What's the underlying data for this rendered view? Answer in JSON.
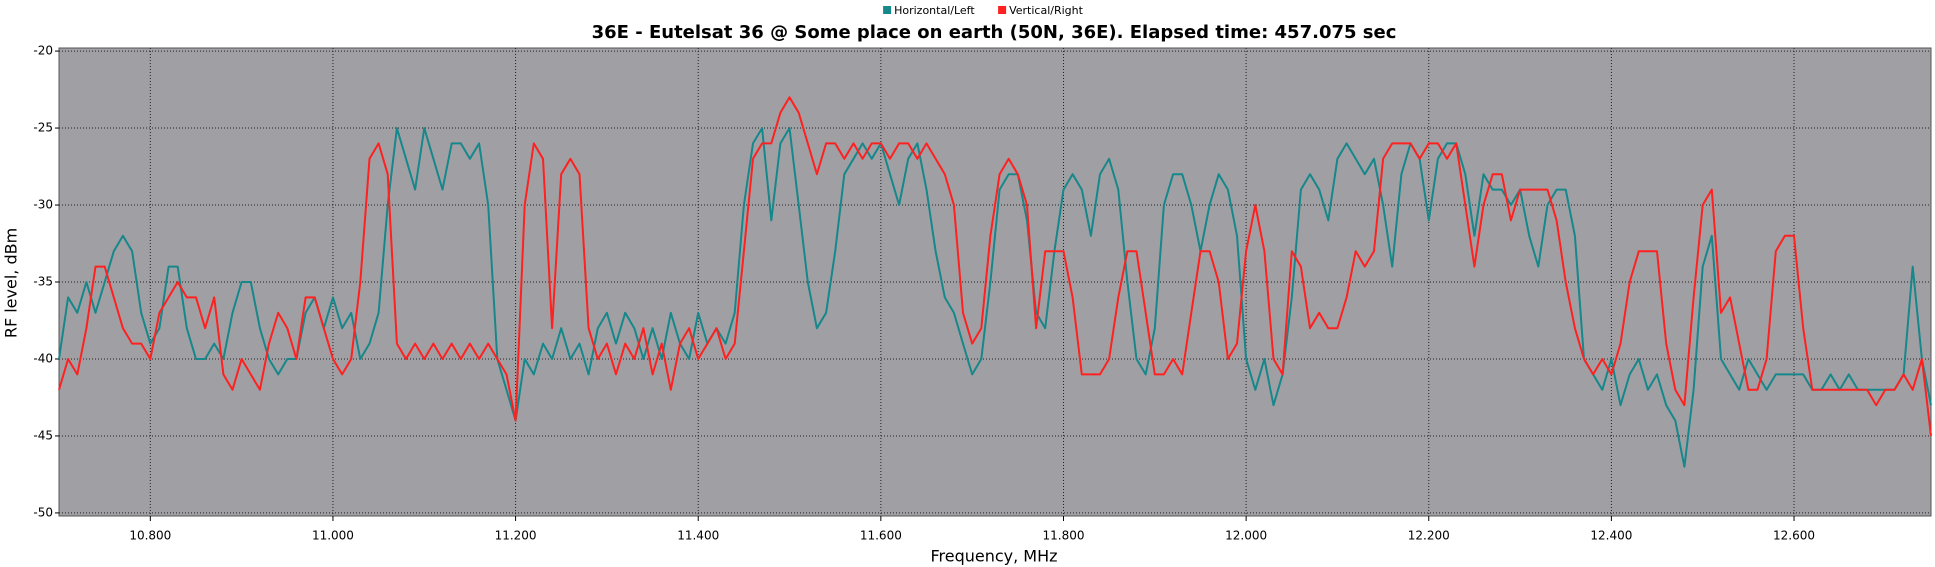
{
  "chart_data": {
    "type": "line",
    "title": "36E - Eutelsat 36 @ Some place on earth (50N, 36E). Elapsed time: 457.075 sec",
    "xlabel": "Frequency, MHz",
    "ylabel": "RF level, dBm",
    "xlim": [
      10.7,
      12.75
    ],
    "ylim": [
      -50.2,
      -19.8
    ],
    "xticks": [
      {
        "value": 10.8,
        "label": "10.800"
      },
      {
        "value": 11.0,
        "label": "11.000"
      },
      {
        "value": 11.2,
        "label": "11.200"
      },
      {
        "value": 11.4,
        "label": "11.400"
      },
      {
        "value": 11.6,
        "label": "11.600"
      },
      {
        "value": 11.8,
        "label": "11.800"
      },
      {
        "value": 12.0,
        "label": "12.000"
      },
      {
        "value": 12.2,
        "label": "12.200"
      },
      {
        "value": 12.4,
        "label": "12.400"
      },
      {
        "value": 12.6,
        "label": "12.600"
      }
    ],
    "yticks": [
      -20,
      -25,
      -30,
      -35,
      -40,
      -45,
      -50
    ],
    "grid": true,
    "legend": "top",
    "x": [
      10.7,
      10.71,
      10.72,
      10.73,
      10.74,
      10.75,
      10.76,
      10.77,
      10.78,
      10.79,
      10.8,
      10.81,
      10.82,
      10.83,
      10.84,
      10.85,
      10.86,
      10.87,
      10.88,
      10.89,
      10.9,
      10.91,
      10.92,
      10.93,
      10.94,
      10.95,
      10.96,
      10.97,
      10.98,
      10.99,
      11,
      11.01,
      11.02,
      11.03,
      11.04,
      11.05,
      11.06,
      11.07,
      11.08,
      11.09,
      11.1,
      11.11,
      11.12,
      11.13,
      11.14,
      11.15,
      11.16,
      11.17,
      11.18,
      11.19,
      11.2,
      11.21,
      11.22,
      11.23,
      11.24,
      11.25,
      11.26,
      11.27,
      11.28,
      11.29,
      11.3,
      11.31,
      11.32,
      11.33,
      11.34,
      11.35,
      11.36,
      11.37,
      11.38,
      11.39,
      11.4,
      11.41,
      11.42,
      11.43,
      11.44,
      11.45,
      11.46,
      11.47,
      11.48,
      11.49,
      11.5,
      11.51,
      11.52,
      11.53,
      11.54,
      11.55,
      11.56,
      11.57,
      11.58,
      11.59,
      11.6,
      11.61,
      11.62,
      11.63,
      11.64,
      11.65,
      11.66,
      11.67,
      11.68,
      11.69,
      11.7,
      11.71,
      11.72,
      11.73,
      11.74,
      11.75,
      11.76,
      11.77,
      11.78,
      11.79,
      11.8,
      11.81,
      11.82,
      11.83,
      11.84,
      11.85,
      11.86,
      11.87,
      11.88,
      11.89,
      11.9,
      11.91,
      11.92,
      11.93,
      11.94,
      11.95,
      11.96,
      11.97,
      11.98,
      11.99,
      12,
      12.01,
      12.02,
      12.03,
      12.04,
      12.05,
      12.06,
      12.07,
      12.08,
      12.09,
      12.1,
      12.11,
      12.12,
      12.13,
      12.14,
      12.15,
      12.16,
      12.17,
      12.18,
      12.19,
      12.2,
      12.21,
      12.22,
      12.23,
      12.24,
      12.25,
      12.26,
      12.27,
      12.28,
      12.29,
      12.3,
      12.31,
      12.32,
      12.33,
      12.34,
      12.35,
      12.36,
      12.37,
      12.38,
      12.39,
      12.4,
      12.41,
      12.42,
      12.43,
      12.44,
      12.45,
      12.46,
      12.47,
      12.48,
      12.49,
      12.5,
      12.51,
      12.52,
      12.53,
      12.54,
      12.55,
      12.56,
      12.57,
      12.58,
      12.59,
      12.6,
      12.61,
      12.62,
      12.63,
      12.64,
      12.65,
      12.66,
      12.67,
      12.68,
      12.69,
      12.7,
      12.71,
      12.72,
      12.73,
      12.74,
      12.75
    ],
    "series": [
      {
        "name": "Horizontal/Left",
        "color": "#16878a",
        "values": [
          -40,
          -36,
          -37,
          -35,
          -37,
          -35,
          -33,
          -32,
          -33,
          -37,
          -39,
          -38,
          -34,
          -34,
          -38,
          -40,
          -40,
          -39,
          -40,
          -37,
          -35,
          -35,
          -38,
          -40,
          -41,
          -40,
          -40,
          -37,
          -36,
          -38,
          -36,
          -38,
          -37,
          -40,
          -39,
          -37,
          -30,
          -25,
          -27,
          -29,
          -25,
          -27,
          -29,
          -26,
          -26,
          -27,
          -26,
          -30,
          -40,
          -42,
          -44,
          -40,
          -41,
          -39,
          -40,
          -38,
          -40,
          -39,
          -41,
          -38,
          -37,
          -39,
          -37,
          -38,
          -40,
          -38,
          -40,
          -37,
          -39,
          -40,
          -37,
          -39,
          -38,
          -39,
          -37,
          -30,
          -26,
          -25,
          -31,
          -26,
          -25,
          -30,
          -35,
          -38,
          -37,
          -33,
          -28,
          -27,
          -26,
          -27,
          -26,
          -28,
          -30,
          -27,
          -26,
          -29,
          -33,
          -36,
          -37,
          -39,
          -41,
          -40,
          -35,
          -29,
          -28,
          -28,
          -31,
          -37,
          -38,
          -33,
          -29,
          -28,
          -29,
          -32,
          -28,
          -27,
          -29,
          -35,
          -40,
          -41,
          -38,
          -30,
          -28,
          -28,
          -30,
          -33,
          -30,
          -28,
          -29,
          -32,
          -40,
          -42,
          -40,
          -43,
          -41,
          -36,
          -29,
          -28,
          -29,
          -31,
          -27,
          -26,
          -27,
          -28,
          -27,
          -30,
          -34,
          -28,
          -26,
          -27,
          -31,
          -27,
          -26,
          -26,
          -28,
          -32,
          -28,
          -29,
          -29,
          -30,
          -29,
          -32,
          -34,
          -30,
          -29,
          -29,
          -32,
          -40,
          -41,
          -42,
          -40,
          -43,
          -41,
          -40,
          -42,
          -41,
          -43,
          -44,
          -47,
          -42,
          -34,
          -32,
          -40,
          -41,
          -42,
          -40,
          -41,
          -42,
          -41,
          -41,
          -41,
          -41,
          -42,
          -42,
          -41,
          -42,
          -41,
          -42,
          -42,
          -42,
          -42,
          -42,
          -41,
          -34,
          -40,
          -43
        ]
      },
      {
        "name": "Vertical/Right",
        "color": "#ff2020",
        "values": [
          -42,
          -40,
          -41,
          -38,
          -34,
          -34,
          -36,
          -38,
          -39,
          -39,
          -40,
          -37,
          -36,
          -35,
          -36,
          -36,
          -38,
          -36,
          -41,
          -42,
          -40,
          -41,
          -42,
          -39,
          -37,
          -38,
          -40,
          -36,
          -36,
          -38,
          -40,
          -41,
          -40,
          -35,
          -27,
          -26,
          -28,
          -39,
          -40,
          -39,
          -40,
          -39,
          -40,
          -39,
          -40,
          -39,
          -40,
          -39,
          -40,
          -41,
          -44,
          -30,
          -26,
          -27,
          -38,
          -28,
          -27,
          -28,
          -38,
          -40,
          -39,
          -41,
          -39,
          -40,
          -38,
          -41,
          -39,
          -42,
          -39,
          -38,
          -40,
          -39,
          -38,
          -40,
          -39,
          -33,
          -27,
          -26,
          -26,
          -24,
          -23,
          -24,
          -26,
          -28,
          -26,
          -26,
          -27,
          -26,
          -27,
          -26,
          -26,
          -27,
          -26,
          -26,
          -27,
          -26,
          -27,
          -28,
          -30,
          -37,
          -39,
          -38,
          -32,
          -28,
          -27,
          -28,
          -30,
          -38,
          -33,
          -33,
          -33,
          -36,
          -41,
          -41,
          -41,
          -40,
          -36,
          -33,
          -33,
          -37,
          -41,
          -41,
          -40,
          -41,
          -37,
          -33,
          -33,
          -35,
          -40,
          -39,
          -33,
          -30,
          -33,
          -40,
          -41,
          -33,
          -34,
          -38,
          -37,
          -38,
          -38,
          -36,
          -33,
          -34,
          -33,
          -27,
          -26,
          -26,
          -26,
          -27,
          -26,
          -26,
          -27,
          -26,
          -30,
          -34,
          -30,
          -28,
          -28,
          -31,
          -29,
          -29,
          -29,
          -29,
          -31,
          -35,
          -38,
          -40,
          -41,
          -40,
          -41,
          -39,
          -35,
          -33,
          -33,
          -33,
          -39,
          -42,
          -43,
          -36,
          -30,
          -29,
          -37,
          -36,
          -39,
          -42,
          -42,
          -40,
          -33,
          -32,
          -32,
          -38,
          -42,
          -42,
          -42,
          -42,
          -42,
          -42,
          -42,
          -43,
          -42,
          -42,
          -41,
          -42,
          -40,
          -45
        ]
      }
    ]
  }
}
